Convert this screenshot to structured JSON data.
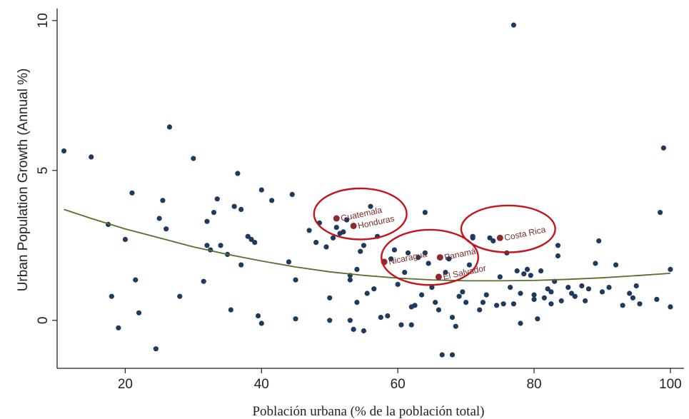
{
  "chart_data": {
    "type": "scatter",
    "title": "",
    "xlabel": "Población urbana (% de la población total)",
    "ylabel": "Urban Population Growth (Annual %)",
    "xlim": [
      10,
      102
    ],
    "ylim": [
      -1.6,
      10.4
    ],
    "xticks": [
      20,
      40,
      60,
      80,
      100
    ],
    "yticks": [
      0,
      5,
      10
    ],
    "grid": false,
    "legend": "none",
    "colors": {
      "points": "#1f3a5f",
      "highlight": "#8b2b2b",
      "fit": "#5a6e2c",
      "circle": "#c4141c"
    },
    "points": [
      [
        11,
        5.65
      ],
      [
        15,
        5.45
      ],
      [
        17.5,
        3.2
      ],
      [
        18,
        0.8
      ],
      [
        19,
        -0.25
      ],
      [
        20,
        2.7
      ],
      [
        21,
        4.25
      ],
      [
        21.5,
        1.35
      ],
      [
        22,
        0.25
      ],
      [
        24.5,
        -0.95
      ],
      [
        25,
        3.4
      ],
      [
        25.5,
        4
      ],
      [
        26,
        3.05
      ],
      [
        26.5,
        6.45
      ],
      [
        28,
        0.8
      ],
      [
        30,
        5.4
      ],
      [
        31.5,
        1.3
      ],
      [
        32,
        3.3
      ],
      [
        32,
        2.5
      ],
      [
        32.5,
        2.35
      ],
      [
        33,
        3.6
      ],
      [
        33.5,
        4.05
      ],
      [
        34,
        2.5
      ],
      [
        35,
        2.2
      ],
      [
        35.5,
        0.35
      ],
      [
        36,
        3.8
      ],
      [
        36.5,
        4.9
      ],
      [
        37,
        3.7
      ],
      [
        37,
        1.85
      ],
      [
        38,
        2.8
      ],
      [
        38.5,
        2.7
      ],
      [
        39,
        2.6
      ],
      [
        39.5,
        0.15
      ],
      [
        40,
        -0.1
      ],
      [
        40,
        4.35
      ],
      [
        41.5,
        4
      ],
      [
        44,
        1.95
      ],
      [
        44.5,
        4.2
      ],
      [
        45,
        1.35
      ],
      [
        45,
        0.05
      ],
      [
        47,
        3
      ],
      [
        48,
        2.6
      ],
      [
        48.5,
        3.25
      ],
      [
        49.5,
        2.45
      ],
      [
        50,
        0.75
      ],
      [
        50,
        0
      ],
      [
        50.5,
        2.75
      ],
      [
        51,
        3.1
      ],
      [
        51.5,
        2.9
      ],
      [
        52,
        2.95
      ],
      [
        52.5,
        3.35
      ],
      [
        53,
        1.5
      ],
      [
        53,
        1.35
      ],
      [
        53,
        0
      ],
      [
        53.5,
        -0.3
      ],
      [
        54,
        0.6
      ],
      [
        54,
        1.7
      ],
      [
        54.5,
        2.3
      ],
      [
        55,
        2.5
      ],
      [
        55,
        -0.35
      ],
      [
        55.5,
        0.9
      ],
      [
        56,
        3.8
      ],
      [
        56.5,
        1.05
      ],
      [
        57,
        2.8
      ],
      [
        57.5,
        0.1
      ],
      [
        58.5,
        0.15
      ],
      [
        59,
        2.05
      ],
      [
        59.5,
        2.35
      ],
      [
        60,
        1.2
      ],
      [
        60.5,
        -0.15
      ],
      [
        61,
        1.6
      ],
      [
        61.5,
        2.25
      ],
      [
        62,
        0.45
      ],
      [
        62,
        -0.15
      ],
      [
        62.5,
        0.5
      ],
      [
        63,
        2.1
      ],
      [
        63.5,
        0.85
      ],
      [
        64,
        3.6
      ],
      [
        64,
        2.25
      ],
      [
        64.5,
        1.9
      ],
      [
        65,
        1.1
      ],
      [
        65.5,
        0.6
      ],
      [
        66,
        0.35
      ],
      [
        66.5,
        -1.15
      ],
      [
        67,
        1.6
      ],
      [
        67.5,
        2.05
      ],
      [
        68,
        -1.15
      ],
      [
        68,
        0.1
      ],
      [
        68.5,
        -0.2
      ],
      [
        69,
        0.8
      ],
      [
        69.5,
        0.95
      ],
      [
        70,
        0.6
      ],
      [
        70.5,
        1.85
      ],
      [
        71,
        2.8
      ],
      [
        71,
        2.75
      ],
      [
        72,
        0.35
      ],
      [
        72.5,
        0.6
      ],
      [
        73,
        0.85
      ],
      [
        73.5,
        2.75
      ],
      [
        74,
        2.65
      ],
      [
        74.5,
        0.5
      ],
      [
        75,
        1.45
      ],
      [
        75.5,
        0.55
      ],
      [
        76,
        2.25
      ],
      [
        76.5,
        1.1
      ],
      [
        77,
        0.55
      ],
      [
        77,
        9.85
      ],
      [
        77.5,
        1.65
      ],
      [
        78,
        0.9
      ],
      [
        78,
        -0.1
      ],
      [
        78.5,
        1.55
      ],
      [
        79,
        1.7
      ],
      [
        79.5,
        1.5
      ],
      [
        80,
        0.85
      ],
      [
        80,
        0.7
      ],
      [
        80.5,
        0.05
      ],
      [
        81,
        1.65
      ],
      [
        81.5,
        0.75
      ],
      [
        82,
        1.05
      ],
      [
        82.5,
        0.95
      ],
      [
        82.5,
        0.55
      ],
      [
        83,
        1.3
      ],
      [
        83.5,
        2.15
      ],
      [
        83.5,
        2.5
      ],
      [
        84,
        0.65
      ],
      [
        85,
        1.1
      ],
      [
        85.5,
        0.9
      ],
      [
        86,
        0.8
      ],
      [
        87,
        1.15
      ],
      [
        87.5,
        0.65
      ],
      [
        88,
        1.05
      ],
      [
        89,
        1.9
      ],
      [
        89.5,
        2.65
      ],
      [
        90,
        0.95
      ],
      [
        91,
        1.1
      ],
      [
        92,
        1.85
      ],
      [
        93,
        0.5
      ],
      [
        94,
        0.9
      ],
      [
        94.5,
        0.75
      ],
      [
        95,
        1.15
      ],
      [
        95.5,
        0.55
      ],
      [
        98,
        0.7
      ],
      [
        98.5,
        3.6
      ],
      [
        99,
        5.75
      ],
      [
        100,
        1.7
      ],
      [
        100,
        0.45
      ]
    ],
    "highlighted": [
      {
        "label": "Guatemala",
        "x": 51,
        "y": 3.4
      },
      {
        "label": "Honduras",
        "x": 53.5,
        "y": 3.15
      },
      {
        "label": "Nicaragua",
        "x": 58,
        "y": 1.95
      },
      {
        "label": "Panamá",
        "x": 66.2,
        "y": 2.1
      },
      {
        "label": "El Salvador",
        "x": 66,
        "y": 1.45
      },
      {
        "label": "Costa Rica",
        "x": 75,
        "y": 2.75
      }
    ],
    "fit_curve": [
      [
        11,
        3.7
      ],
      [
        15,
        3.4
      ],
      [
        20,
        3.05
      ],
      [
        25,
        2.75
      ],
      [
        30,
        2.45
      ],
      [
        35,
        2.2
      ],
      [
        40,
        1.98
      ],
      [
        45,
        1.78
      ],
      [
        50,
        1.62
      ],
      [
        55,
        1.5
      ],
      [
        60,
        1.41
      ],
      [
        65,
        1.35
      ],
      [
        70,
        1.32
      ],
      [
        75,
        1.32
      ],
      [
        80,
        1.33
      ],
      [
        85,
        1.37
      ],
      [
        90,
        1.42
      ],
      [
        95,
        1.49
      ],
      [
        100,
        1.57
      ]
    ],
    "highlight_circles": [
      {
        "cx": 54.5,
        "cy": 3.55,
        "rx": 6.8,
        "ry": 0.85
      },
      {
        "cx": 64.7,
        "cy": 2.1,
        "rx": 7.1,
        "ry": 0.92
      },
      {
        "cx": 76.2,
        "cy": 3.05,
        "rx": 6.9,
        "ry": 0.78
      }
    ]
  }
}
